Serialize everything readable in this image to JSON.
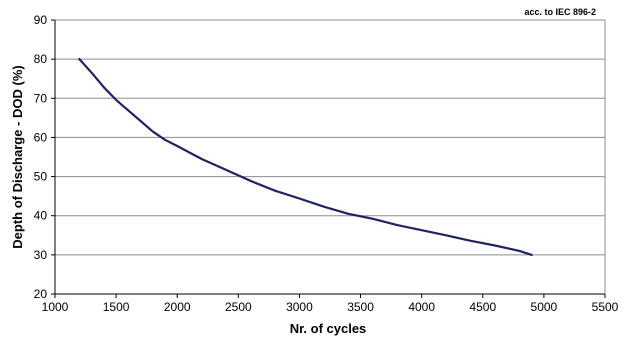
{
  "chart_data": {
    "type": "line",
    "title": "",
    "annotation": "acc. to IEC 896-2",
    "xlabel": "Nr. of cycles",
    "ylabel": "Depth of Discharge - DOD (%)",
    "xlim": [
      1000,
      5500
    ],
    "ylim": [
      20,
      90
    ],
    "xticks": [
      1000,
      1500,
      2000,
      2500,
      3000,
      3500,
      4000,
      4500,
      5000,
      5500
    ],
    "yticks": [
      20,
      30,
      40,
      50,
      60,
      70,
      80,
      90
    ],
    "grid": "horizontal",
    "legend": "none",
    "line_color": "#1f2360",
    "series": [
      {
        "x": [
          1200,
          1300,
          1400,
          1500,
          1600,
          1700,
          1800,
          1900,
          2000,
          2200,
          2400,
          2600,
          2800,
          3000,
          3200,
          3400,
          3600,
          3800,
          4000,
          4200,
          4400,
          4600,
          4800,
          4900
        ],
        "y": [
          80,
          76.5,
          72.8,
          69.6,
          66.9,
          64.2,
          61.5,
          59.4,
          57.8,
          54.5,
          51.7,
          48.9,
          46.4,
          44.4,
          42.3,
          40.5,
          39.2,
          37.6,
          36.3,
          35.0,
          33.6,
          32.4,
          31.0,
          30.0
        ]
      }
    ]
  }
}
